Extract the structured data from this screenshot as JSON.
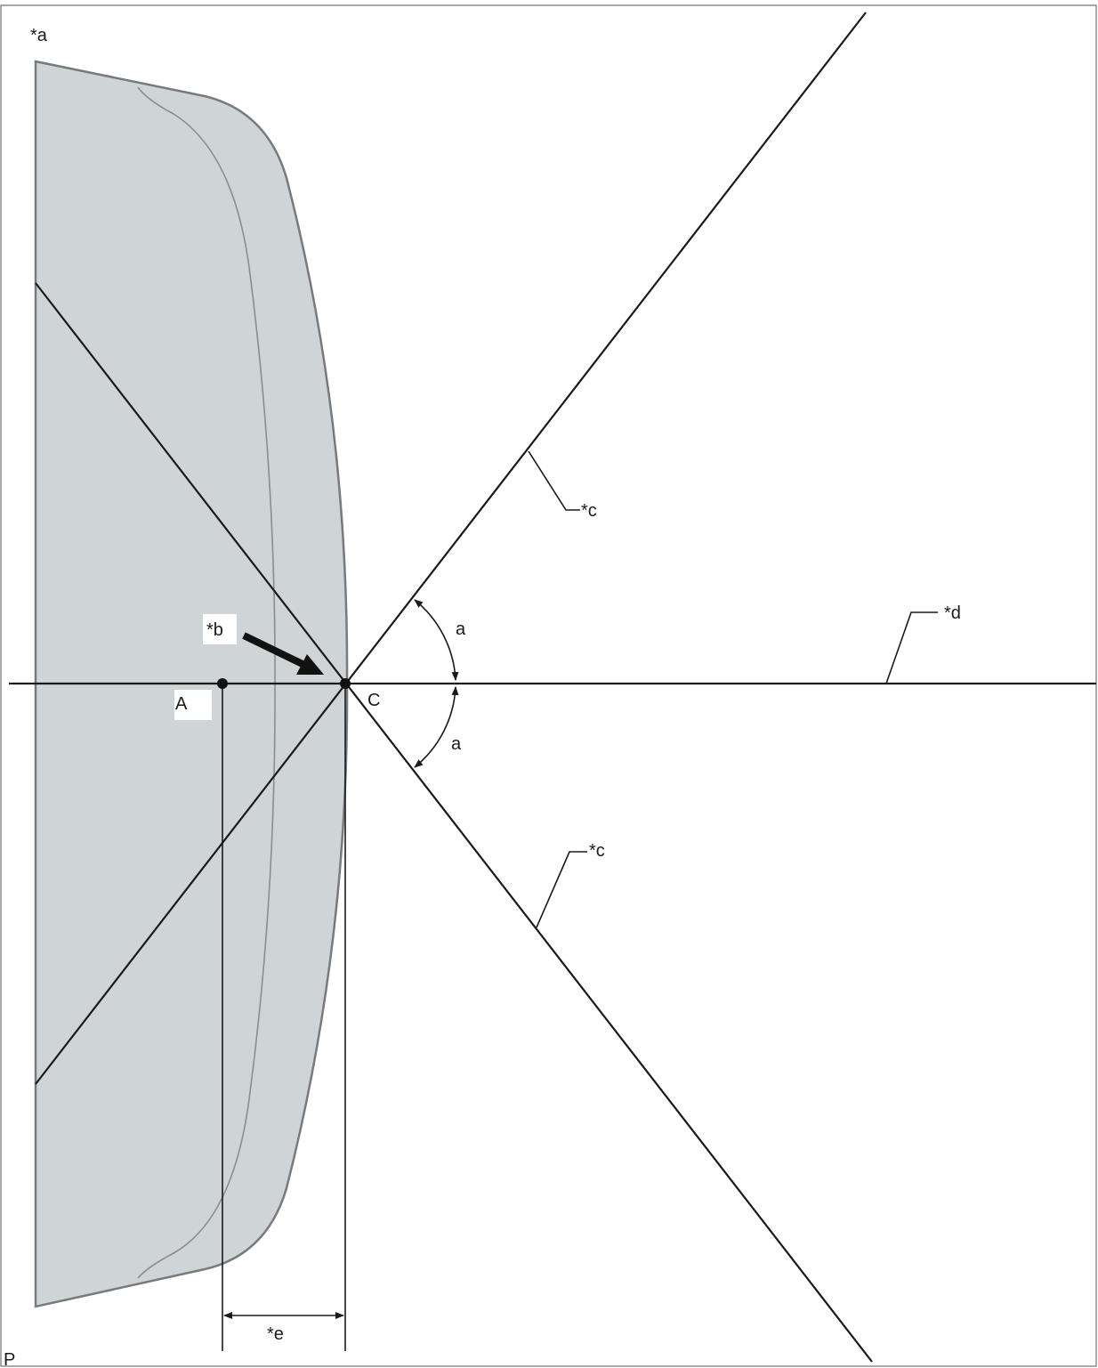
{
  "labels": {
    "part": "*a",
    "contact_point": "*b",
    "cut_line_upper": "*c",
    "cut_line_lower": "*c",
    "center_line": "*d",
    "offset_dimension": "*e",
    "angle_upper": "a",
    "angle_lower": "a",
    "point_a": "A",
    "point_c": "C",
    "corner_mark": "P"
  },
  "colors": {
    "part_fill": "#cfd4d6",
    "part_outline": "#777b7e",
    "line": "#1a1a1a",
    "background": "#ffffff"
  }
}
